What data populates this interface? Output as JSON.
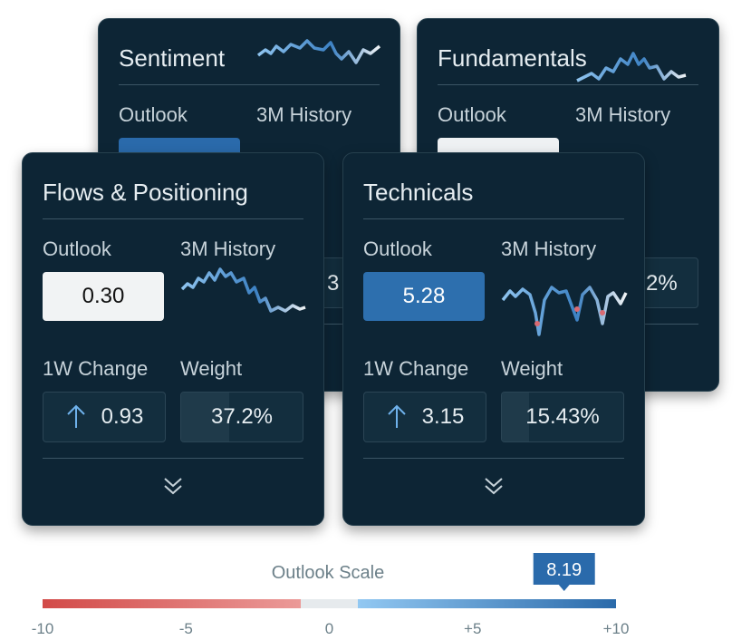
{
  "cards": [
    {
      "title": "Sentiment",
      "outlook_label": "Outlook",
      "history_label": "3M History",
      "weight_fragment": "3"
    },
    {
      "title": "Fundamentals",
      "outlook_label": "Outlook",
      "history_label": "3M History",
      "weight_fragment": "2%"
    },
    {
      "title": "Flows & Positioning",
      "outlook_label": "Outlook",
      "history_label": "3M History",
      "outlook_value": "0.30",
      "change_label": "1W Change",
      "change_value": "0.93",
      "weight_label": "Weight",
      "weight_value": "37.2%"
    },
    {
      "title": "Technicals",
      "outlook_label": "Outlook",
      "history_label": "3M History",
      "outlook_value": "5.28",
      "change_label": "1W Change",
      "change_value": "3.15",
      "weight_label": "Weight",
      "weight_value": "15.43%"
    }
  ],
  "scale": {
    "title": "Outlook Scale",
    "marker": "8.19",
    "ticks": [
      -10,
      {
        "value": -5,
        "label": "-5"
      },
      0,
      {
        "value": 5,
        "label": "+5"
      },
      {
        "value": 10,
        "label": "+10"
      }
    ]
  }
}
